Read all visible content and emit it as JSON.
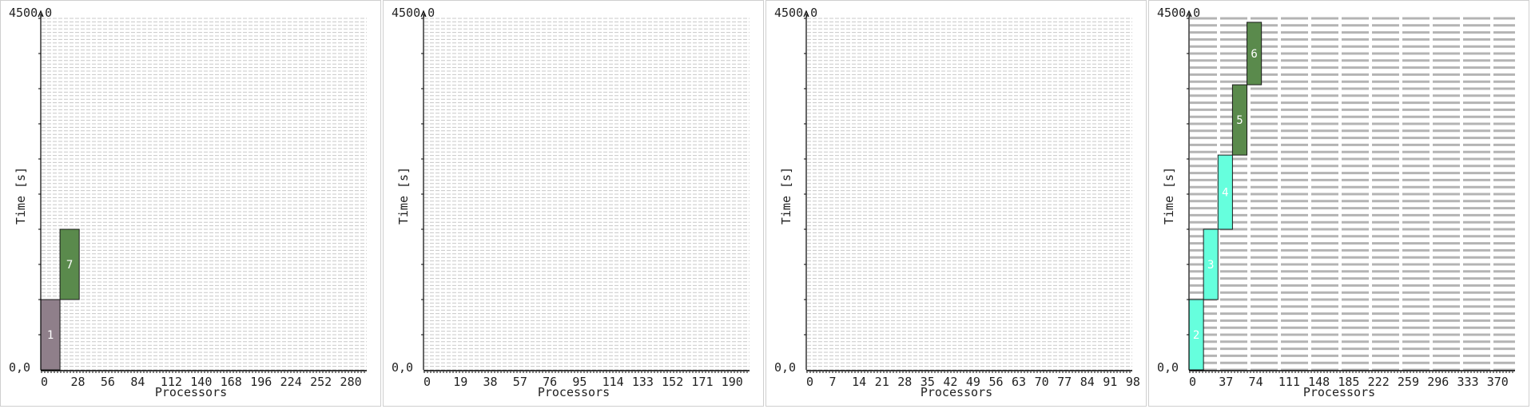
{
  "chart_data": [
    {
      "type": "gantt",
      "xlabel": "Processors",
      "ylabel": "Time [s]",
      "y_top_label": "4500,0",
      "y_bottom_label": "0,0",
      "ylim": [
        0,
        4500
      ],
      "xlim": [
        0,
        305
      ],
      "xticks": [
        "0",
        "28",
        "56",
        "84",
        "112",
        "140",
        "168",
        "196",
        "224",
        "252",
        "280"
      ],
      "grid_rows": 100,
      "jobs": [
        {
          "label": "1",
          "proc_start": 0,
          "proc_end": 18,
          "start": 0,
          "end": 900,
          "color": "#8f7f8a",
          "text_color": "#ffffff"
        },
        {
          "label": "7",
          "proc_start": 18,
          "proc_end": 36,
          "start": 900,
          "end": 1800,
          "color": "#5a8a4c",
          "text_color": "#ffffff"
        }
      ]
    },
    {
      "type": "gantt",
      "xlabel": "Processors",
      "ylabel": "Time [s]",
      "y_top_label": "4500,0",
      "y_bottom_label": "0,0",
      "ylim": [
        0,
        4500
      ],
      "xlim": [
        0,
        208
      ],
      "xticks": [
        "0",
        "19",
        "38",
        "57",
        "76",
        "95",
        "114",
        "133",
        "152",
        "171",
        "190"
      ],
      "grid_rows": 100,
      "jobs": []
    },
    {
      "type": "gantt",
      "xlabel": "Processors",
      "ylabel": "Time [s]",
      "y_top_label": "4500,0",
      "y_bottom_label": "0,0",
      "ylim": [
        0,
        4500
      ],
      "xlim": [
        0,
        100
      ],
      "xticks": [
        "0",
        "7",
        "14",
        "21",
        "28",
        "35",
        "42",
        "49",
        "56",
        "63",
        "70",
        "77",
        "84",
        "91",
        "98"
      ],
      "grid_rows": 100,
      "jobs": []
    },
    {
      "type": "gantt",
      "xlabel": "Processors",
      "ylabel": "Time [s]",
      "y_top_label": "4500,0",
      "y_bottom_label": "0,0",
      "ylim": [
        0,
        4500
      ],
      "xlim": [
        0,
        405
      ],
      "xticks": [
        "0",
        "37",
        "74",
        "111",
        "148",
        "185",
        "222",
        "259",
        "296",
        "333",
        "370"
      ],
      "grid_rows": 50,
      "jobs": [
        {
          "label": "2",
          "proc_start": 0,
          "proc_end": 18,
          "start": 0,
          "end": 900,
          "color": "#66ffdd",
          "text_color": "#ffffff"
        },
        {
          "label": "3",
          "proc_start": 18,
          "proc_end": 36,
          "start": 900,
          "end": 1800,
          "color": "#66ffdd",
          "text_color": "#ffffff"
        },
        {
          "label": "4",
          "proc_start": 36,
          "proc_end": 54,
          "start": 1800,
          "end": 2750,
          "color": "#66ffdd",
          "text_color": "#ffffff"
        },
        {
          "label": "5",
          "proc_start": 54,
          "proc_end": 72,
          "start": 2750,
          "end": 3650,
          "color": "#5a8a4c",
          "text_color": "#ffffff"
        },
        {
          "label": "6",
          "proc_start": 72,
          "proc_end": 90,
          "start": 3650,
          "end": 4450,
          "color": "#5a8a4c",
          "text_color": "#ffffff"
        }
      ]
    }
  ]
}
